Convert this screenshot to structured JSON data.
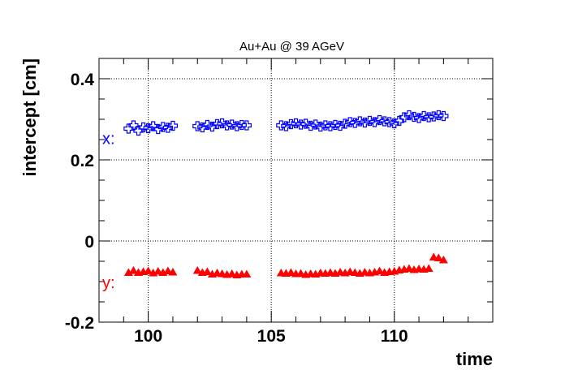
{
  "chart_data": {
    "type": "scatter",
    "title": "Au+Au @ 39 AGeV",
    "xlabel": "time",
    "ylabel": "intercept [cm]",
    "xlim": [
      98,
      114
    ],
    "ylim": [
      -0.2,
      0.45
    ],
    "xticks": [
      100,
      105,
      110
    ],
    "yticks": [
      -0.2,
      0,
      0.2,
      0.4
    ],
    "ytick_labels": [
      "-0.2",
      "0",
      "0.2",
      "0.4"
    ],
    "grid": true,
    "series": [
      {
        "name": "x:",
        "color": "#0000ff",
        "marker": "open-cross",
        "x": [
          99.2,
          99.4,
          99.6,
          99.8,
          100.0,
          100.2,
          100.4,
          100.6,
          100.8,
          101.0,
          102.0,
          102.2,
          102.4,
          102.6,
          102.8,
          103.0,
          103.2,
          103.4,
          103.6,
          103.8,
          104.0,
          105.4,
          105.6,
          105.8,
          106.0,
          106.2,
          106.4,
          106.6,
          106.8,
          107.0,
          107.2,
          107.4,
          107.6,
          107.8,
          108.0,
          108.2,
          108.4,
          108.6,
          108.8,
          109.0,
          109.2,
          109.4,
          109.6,
          109.8,
          110.0,
          110.2,
          110.4,
          110.6,
          110.8,
          111.0,
          111.2,
          111.4,
          111.6,
          111.8,
          112.0
        ],
        "values": [
          0.277,
          0.285,
          0.272,
          0.28,
          0.278,
          0.283,
          0.276,
          0.281,
          0.279,
          0.284,
          0.283,
          0.28,
          0.286,
          0.282,
          0.288,
          0.29,
          0.285,
          0.287,
          0.283,
          0.286,
          0.285,
          0.285,
          0.283,
          0.288,
          0.29,
          0.287,
          0.289,
          0.284,
          0.287,
          0.282,
          0.285,
          0.283,
          0.286,
          0.284,
          0.289,
          0.293,
          0.291,
          0.295,
          0.292,
          0.296,
          0.293,
          0.298,
          0.295,
          0.293,
          0.29,
          0.296,
          0.305,
          0.31,
          0.306,
          0.303,
          0.308,
          0.305,
          0.307,
          0.31,
          0.308
        ]
      },
      {
        "name": "y:",
        "color": "#ff0000",
        "marker": "filled-triangle",
        "x": [
          99.2,
          99.4,
          99.6,
          99.8,
          100.0,
          100.2,
          100.4,
          100.6,
          100.8,
          101.0,
          102.0,
          102.2,
          102.4,
          102.6,
          102.8,
          103.0,
          103.2,
          103.4,
          103.6,
          103.8,
          104.0,
          105.4,
          105.6,
          105.8,
          106.0,
          106.2,
          106.4,
          106.6,
          106.8,
          107.0,
          107.2,
          107.4,
          107.6,
          107.8,
          108.0,
          108.2,
          108.4,
          108.6,
          108.8,
          109.0,
          109.2,
          109.4,
          109.6,
          109.8,
          110.0,
          110.2,
          110.4,
          110.6,
          110.8,
          111.0,
          111.2,
          111.4,
          111.6,
          111.8,
          112.0
        ],
        "values": [
          -0.078,
          -0.073,
          -0.078,
          -0.076,
          -0.074,
          -0.079,
          -0.075,
          -0.078,
          -0.074,
          -0.077,
          -0.073,
          -0.078,
          -0.076,
          -0.082,
          -0.079,
          -0.081,
          -0.083,
          -0.081,
          -0.084,
          -0.082,
          -0.082,
          -0.079,
          -0.08,
          -0.078,
          -0.081,
          -0.08,
          -0.083,
          -0.081,
          -0.082,
          -0.079,
          -0.08,
          -0.078,
          -0.08,
          -0.077,
          -0.079,
          -0.076,
          -0.078,
          -0.08,
          -0.077,
          -0.079,
          -0.077,
          -0.074,
          -0.078,
          -0.076,
          -0.075,
          -0.072,
          -0.07,
          -0.068,
          -0.071,
          -0.069,
          -0.07,
          -0.068,
          -0.04,
          -0.042,
          -0.047
        ]
      }
    ]
  }
}
